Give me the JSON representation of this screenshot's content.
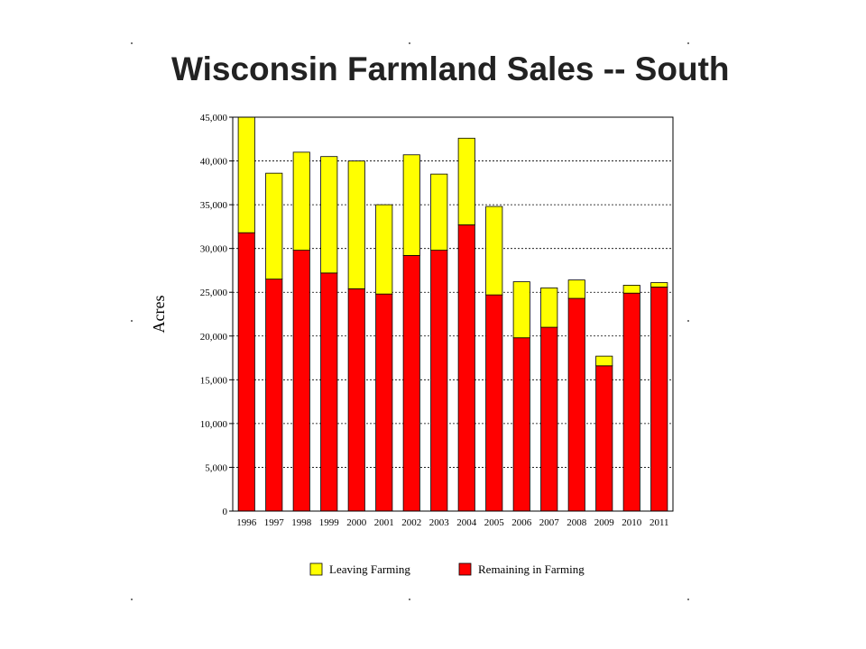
{
  "slide": {
    "title": "Wisconsin Farmland Sales -- South"
  },
  "chart_data": {
    "type": "bar",
    "stacked": true,
    "title": "",
    "ylabel": "Acres",
    "xlabel": "",
    "ylim": [
      0,
      45000
    ],
    "yticks": [
      0,
      5000,
      10000,
      15000,
      20000,
      25000,
      30000,
      35000,
      40000,
      45000
    ],
    "ytick_labels": [
      "0",
      "5,000",
      "10,000",
      "15,000",
      "20,000",
      "25,000",
      "30,000",
      "35,000",
      "40,000",
      "45,000"
    ],
    "grid": "horizontal dotted",
    "legend_position": "bottom",
    "categories": [
      "1996",
      "1997",
      "1998",
      "1999",
      "2000",
      "2001",
      "2002",
      "2003",
      "2004",
      "2005",
      "2006",
      "2007",
      "2008",
      "2009",
      "2010",
      "2011"
    ],
    "series": [
      {
        "name": "Remaining in Farming",
        "color": "#ff0000",
        "values": [
          31800,
          26500,
          29800,
          27200,
          25400,
          24800,
          29200,
          29800,
          32700,
          24700,
          19800,
          21000,
          24300,
          16600,
          24900,
          25600
        ]
      },
      {
        "name": "Leaving Farming",
        "color": "#ffff00",
        "values": [
          13200,
          12100,
          11200,
          13300,
          14600,
          10200,
          11500,
          8700,
          9900,
          10100,
          6400,
          4500,
          2100,
          1100,
          900,
          500
        ]
      }
    ],
    "legend_order": [
      "Leaving Farming",
      "Remaining in Farming"
    ]
  }
}
